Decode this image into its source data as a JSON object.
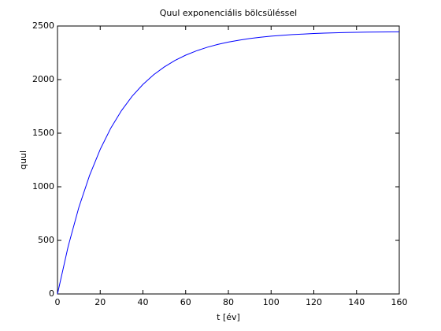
{
  "chart_data": {
    "type": "line",
    "title": "Quul exponenciális bölcsüléssel",
    "xlabel": "t [év]",
    "ylabel": "quul",
    "x": [
      0,
      5,
      10,
      15,
      20,
      25,
      30,
      35,
      40,
      45,
      50,
      55,
      60,
      65,
      70,
      75,
      80,
      85,
      90,
      95,
      100,
      105,
      110,
      115,
      120,
      125,
      130,
      135,
      140,
      145,
      150,
      155,
      160
    ],
    "series": [
      {
        "name": "quul",
        "color": "#0000ff",
        "values": [
          0,
          444,
          808,
          1105,
          1349,
          1549,
          1712,
          1846,
          1955,
          2045,
          2118,
          2179,
          2228,
          2268,
          2301,
          2328,
          2350,
          2368,
          2383,
          2395,
          2405,
          2413,
          2420,
          2425,
          2430,
          2434,
          2437,
          2439,
          2441,
          2443,
          2444,
          2445,
          2446
        ]
      }
    ],
    "xlim": [
      0,
      160
    ],
    "xticks": [
      0,
      20,
      40,
      60,
      80,
      100,
      120,
      140,
      160
    ],
    "ylim": [
      0,
      2500
    ],
    "yticks": [
      0,
      500,
      1000,
      1500,
      2000,
      2500
    ]
  }
}
